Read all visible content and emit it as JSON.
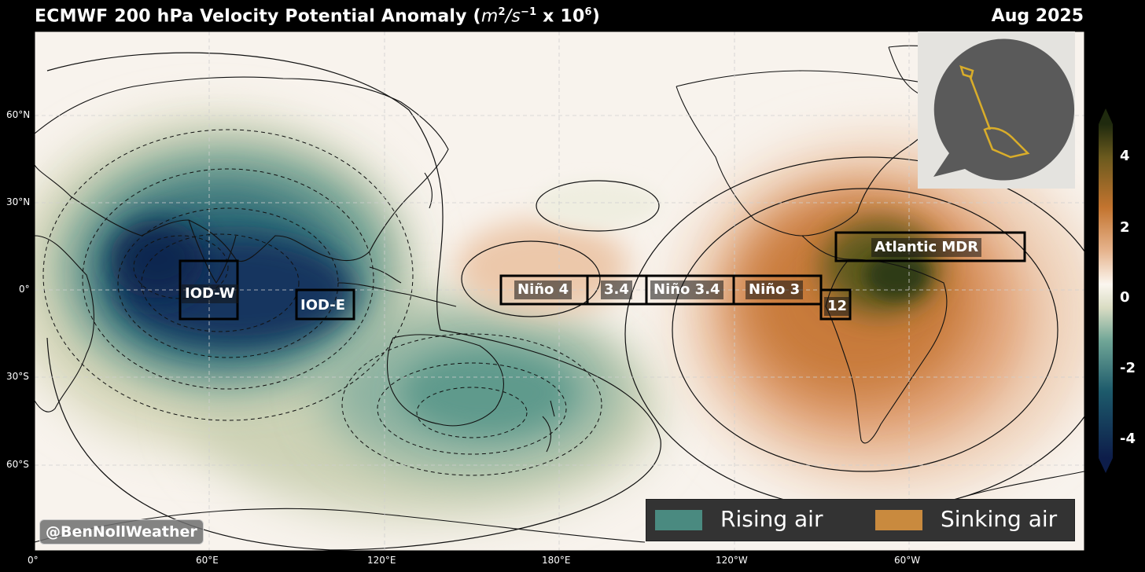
{
  "header": {
    "title_main": "ECMWF 200 hPa Velocity Potential Anomaly (",
    "title_unit_italic": "m",
    "title_sup1": "2",
    "title_unit_italic2": "/s",
    "title_sup2": "−1",
    "title_tail": " x 10",
    "title_sup3": "6",
    "title_close": ")",
    "date": "Aug 2025"
  },
  "colorbar": {
    "ticks": [
      "4",
      "2",
      "0",
      "-2",
      "-4"
    ],
    "colors": [
      "#0d1d4a",
      "#1d5a6b",
      "#5f9a8c",
      "#cfd2b6",
      "#fbf6ef",
      "#e2a47a",
      "#c3742f",
      "#2f3a12"
    ]
  },
  "axes": {
    "x_ticks": [
      "0°",
      "60°E",
      "120°E",
      "180°E",
      "120°W",
      "60°W"
    ],
    "y_ticks": [
      "60°N",
      "30°N",
      "0°",
      "30°S",
      "60°S"
    ]
  },
  "regions": [
    {
      "id": "iod-w",
      "label": "IOD-W"
    },
    {
      "id": "iod-e",
      "label": "IOD-E"
    },
    {
      "id": "nino4",
      "label": "Niño 4"
    },
    {
      "id": "nino34-short",
      "label": "3.4"
    },
    {
      "id": "nino34",
      "label": "Niño 3.4"
    },
    {
      "id": "nino3",
      "label": "Niño 3"
    },
    {
      "id": "nino12",
      "label": "12"
    },
    {
      "id": "atlantic-mdr",
      "label": "Atlantic MDR"
    }
  ],
  "legend": {
    "rising": {
      "label": "Rising air",
      "color": "#4a8a80"
    },
    "sinking": {
      "label": "Sinking air",
      "color": "#c98a3e"
    }
  },
  "credit": "@BenNollWeather",
  "logo": {
    "icon": "shovel-icon"
  }
}
